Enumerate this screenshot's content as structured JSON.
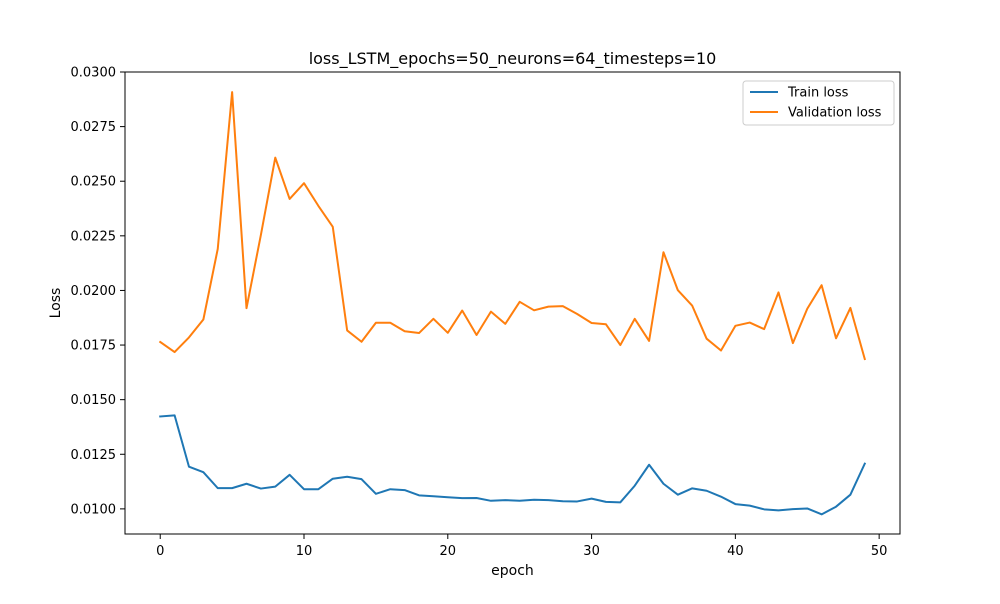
{
  "chart_data": {
    "type": "line",
    "title": "loss_LSTM_epochs=50_neurons=64_timesteps=10",
    "xlabel": "epoch",
    "ylabel": "Loss",
    "xlim": [
      -2.45,
      51.45
    ],
    "ylim": [
      0.00885,
      0.03
    ],
    "xticks": [
      0,
      10,
      20,
      30,
      40,
      50
    ],
    "xtick_labels": [
      "0",
      "10",
      "20",
      "30",
      "40",
      "50"
    ],
    "yticks": [
      0.01,
      0.0125,
      0.015,
      0.0175,
      0.02,
      0.0225,
      0.025,
      0.0275,
      0.03
    ],
    "ytick_labels": [
      "0.0100",
      "0.0125",
      "0.0150",
      "0.0175",
      "0.0200",
      "0.0225",
      "0.0250",
      "0.0275",
      "0.0300"
    ],
    "grid": false,
    "legend_position": "top-right",
    "x": [
      0,
      1,
      2,
      3,
      4,
      5,
      6,
      7,
      8,
      9,
      10,
      11,
      12,
      13,
      14,
      15,
      16,
      17,
      18,
      19,
      20,
      21,
      22,
      23,
      24,
      25,
      26,
      27,
      28,
      29,
      30,
      31,
      32,
      33,
      34,
      35,
      36,
      37,
      38,
      39,
      40,
      41,
      42,
      43,
      44,
      45,
      46,
      47,
      48,
      49
    ],
    "series": [
      {
        "name": "Train loss",
        "color": "#1f77b4",
        "values": [
          0.01423,
          0.01428,
          0.01193,
          0.01168,
          0.01095,
          0.01095,
          0.01115,
          0.01093,
          0.01102,
          0.01156,
          0.0109,
          0.0109,
          0.01138,
          0.01147,
          0.01136,
          0.01069,
          0.0109,
          0.01086,
          0.01062,
          0.01058,
          0.01053,
          0.01049,
          0.0105,
          0.01037,
          0.0104,
          0.01037,
          0.01042,
          0.0104,
          0.01035,
          0.01034,
          0.01047,
          0.01032,
          0.0103,
          0.01106,
          0.01202,
          0.01115,
          0.01065,
          0.01094,
          0.01083,
          0.01056,
          0.01022,
          0.01015,
          0.00998,
          0.00993,
          0.00999,
          0.01002,
          0.00975,
          0.0101,
          0.01065,
          0.01207
        ]
      },
      {
        "name": "Validation loss",
        "color": "#ff7f0e",
        "values": [
          0.01764,
          0.01718,
          0.01785,
          0.01867,
          0.0219,
          0.02908,
          0.01919,
          0.02254,
          0.02608,
          0.02419,
          0.02491,
          0.02387,
          0.02291,
          0.01817,
          0.01765,
          0.01852,
          0.01852,
          0.01813,
          0.01805,
          0.0187,
          0.01806,
          0.01908,
          0.01796,
          0.01903,
          0.01847,
          0.01948,
          0.01909,
          0.01926,
          0.01928,
          0.01892,
          0.01851,
          0.01845,
          0.0175,
          0.0187,
          0.01769,
          0.02175,
          0.02001,
          0.0193,
          0.01779,
          0.01725,
          0.01838,
          0.01853,
          0.01823,
          0.01991,
          0.01759,
          0.01916,
          0.02024,
          0.01781,
          0.0192,
          0.01686
        ]
      }
    ]
  }
}
